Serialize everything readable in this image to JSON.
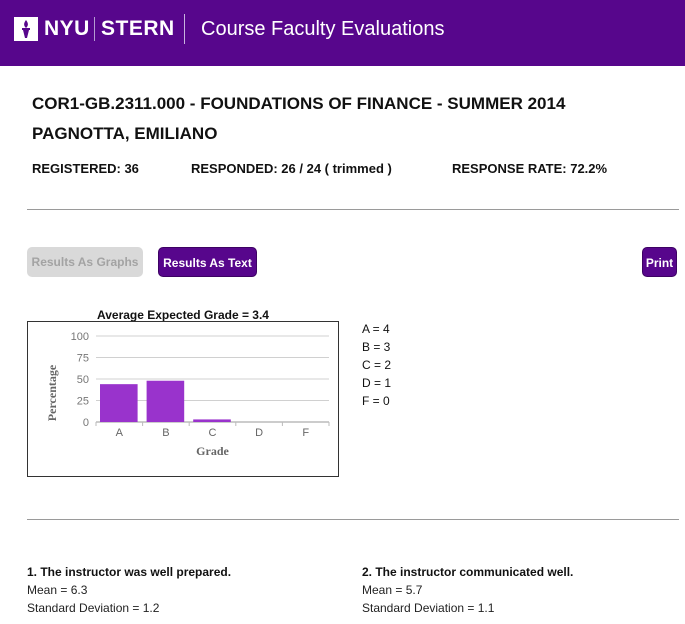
{
  "header": {
    "logo_left": "NYU",
    "logo_right": "STERN",
    "title": "Course Faculty Evaluations"
  },
  "course": {
    "title": "COR1-GB.2311.000 - FOUNDATIONS OF FINANCE - SUMMER 2014",
    "instructor": "PAGNOTTA, EMILIANO"
  },
  "stats": {
    "registered": "REGISTERED: 36",
    "responded": "RESPONDED: 26 / 24 ( trimmed )",
    "response_rate": "RESPONSE RATE: 72.2%"
  },
  "buttons": {
    "graphs": "Results As Graphs",
    "text": "Results As Text",
    "print": "Print"
  },
  "chart_data": {
    "type": "bar",
    "title": "Average Expected Grade = 3.4",
    "xlabel": "Grade",
    "ylabel": "Percentage",
    "categories": [
      "A",
      "B",
      "C",
      "D",
      "F"
    ],
    "values": [
      44,
      48,
      3,
      0,
      0
    ],
    "ylim": [
      0,
      100
    ],
    "yticks": [
      0,
      25,
      50,
      75,
      100
    ],
    "grid": true,
    "bar_color": "#9933cc"
  },
  "grade_legend": [
    "A = 4",
    "B = 3",
    "C = 2",
    "D = 1",
    "F = 0"
  ],
  "questions": [
    {
      "title": "1. The instructor was well prepared.",
      "mean": "Mean = 6.3",
      "sd": "Standard Deviation = 1.2"
    },
    {
      "title": "2. The instructor communicated well.",
      "mean": "Mean = 5.7",
      "sd": "Standard Deviation = 1.1"
    }
  ],
  "colors": {
    "brand_purple": "#57068c",
    "disabled_button": "#d9d9d9"
  }
}
